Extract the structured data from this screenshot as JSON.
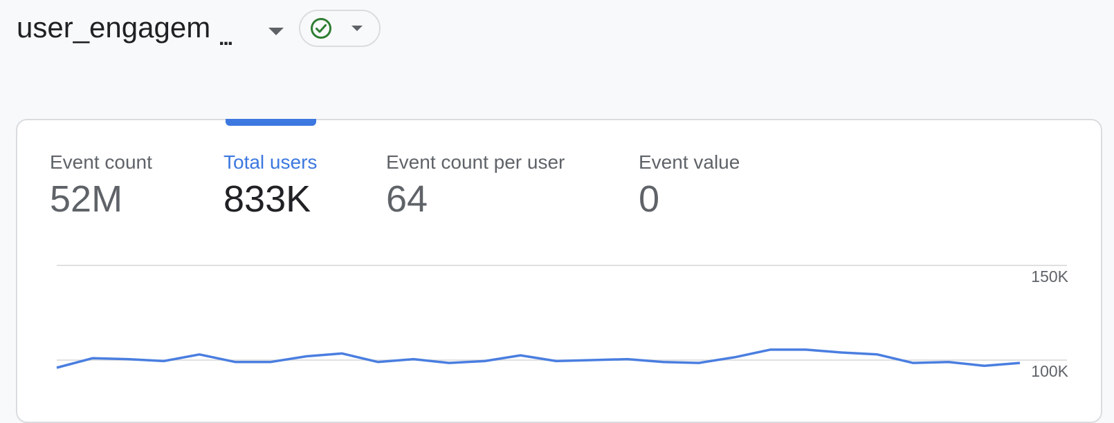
{
  "header": {
    "event_name": "user_engagem",
    "ellipsis": "..."
  },
  "status_chip": {
    "icon": "check-circle-icon",
    "status_color": "#2e7d32"
  },
  "metrics": [
    {
      "label": "Event count",
      "value": "52M",
      "active": false
    },
    {
      "label": "Total users",
      "value": "833K",
      "active": true
    },
    {
      "label": "Event count per user",
      "value": "64",
      "active": false
    },
    {
      "label": "Event value",
      "value": "0",
      "active": false
    }
  ],
  "colors": {
    "accent": "#3c78e0",
    "line": "#4a7ee0",
    "grid": "#e0e0e0"
  },
  "chart_data": {
    "type": "line",
    "series": [
      {
        "values": [
          96000,
          101000,
          100500,
          99500,
          103000,
          99000,
          99000,
          102000,
          103500,
          99000,
          100500,
          98500,
          99500,
          102500,
          99500,
          100000,
          100500,
          99000,
          98500,
          101500,
          105500,
          105500,
          104000,
          103000,
          98500,
          99000,
          97000,
          98500
        ]
      }
    ],
    "ylim": [
      100000,
      150000
    ],
    "y_ticks": [
      {
        "value": 150000,
        "label": "150K"
      },
      {
        "value": 100000,
        "label": "100K"
      }
    ],
    "grid": true
  }
}
